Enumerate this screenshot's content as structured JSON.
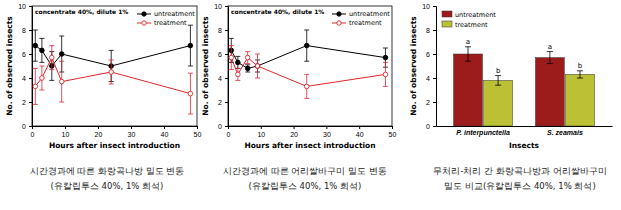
{
  "chart_data": [
    {
      "type": "line",
      "annotations": [
        "concentrate 40%, dilute 1%"
      ],
      "x_label": "Hours after insect introduction",
      "y_label": "No. of observed insects",
      "x": [
        1,
        3,
        6,
        9,
        24,
        48
      ],
      "xlim": [
        0,
        50
      ],
      "xticks": [
        0,
        10,
        20,
        30,
        40,
        50
      ],
      "ylim": [
        0,
        10
      ],
      "yticks": [
        0,
        2,
        4,
        6,
        8,
        10
      ],
      "legend": "top-right",
      "series": [
        {
          "name": "untreatment",
          "color": "#000000",
          "marker": "circle",
          "line_style": "solid",
          "values": [
            6.7,
            6.3,
            5.0,
            6.0,
            5.0,
            6.7
          ],
          "errors": [
            1.3,
            1.0,
            1.2,
            1.5,
            1.3,
            1.7
          ]
        },
        {
          "name": "treatment",
          "color": "#e0262c",
          "marker": "circle-open",
          "line_style": "solid",
          "values": [
            3.3,
            4.0,
            5.7,
            3.7,
            4.5,
            2.7
          ],
          "errors": [
            1.5,
            1.0,
            1.0,
            1.7,
            1.0,
            1.7
          ]
        }
      ],
      "caption": [
        "시간경과에 따른 화랑곡나방 밀도 변동",
        "(유칼립투스 40%, 1% 희석)"
      ]
    },
    {
      "type": "line",
      "annotations": [
        "concentrate 40%, dilute 1%"
      ],
      "x_label": "Hours after insect introduction",
      "y_label": "No. of observed insects",
      "x": [
        1,
        3,
        6,
        9,
        24,
        48
      ],
      "xlim": [
        0,
        50
      ],
      "xticks": [
        0,
        10,
        20,
        30,
        40,
        50
      ],
      "ylim": [
        0,
        10
      ],
      "yticks": [
        0,
        2,
        4,
        6,
        8,
        10
      ],
      "legend": "top-right",
      "series": [
        {
          "name": "untreatment",
          "color": "#000000",
          "marker": "circle",
          "line_style": "solid",
          "values": [
            6.3,
            5.3,
            4.8,
            5.0,
            6.7,
            5.7
          ],
          "errors": [
            1.0,
            0.5,
            0.3,
            0.5,
            1.3,
            0.8
          ]
        },
        {
          "name": "treatment",
          "color": "#e0262c",
          "marker": "circle-open",
          "line_style": "solid",
          "values": [
            5.7,
            4.3,
            5.7,
            5.0,
            3.3,
            4.3
          ],
          "errors": [
            1.0,
            0.5,
            0.5,
            1.0,
            1.0,
            1.0
          ]
        }
      ],
      "caption": [
        "시간경과에 따른 어리쌀바구미 밀도 변동",
        "(유칼립투스 40%, 1% 희석)"
      ]
    },
    {
      "type": "bar",
      "x_label": "Insects",
      "y_label": "No. of observed insects",
      "categories": [
        "P. interpunctella",
        "S. zeamais"
      ],
      "ylim": [
        0,
        10
      ],
      "yticks": [
        0,
        2,
        4,
        6,
        8,
        10
      ],
      "legend": "top-left",
      "series": [
        {
          "name": "untreatment",
          "color": "#9c1c1c",
          "values": [
            6.0,
            5.7
          ],
          "errors": [
            0.6,
            0.5
          ],
          "letters": [
            "a",
            "a"
          ]
        },
        {
          "name": "treatment",
          "color": "#bcc034",
          "values": [
            3.8,
            4.3
          ],
          "errors": [
            0.4,
            0.3
          ],
          "letters": [
            "b",
            "b"
          ]
        }
      ],
      "caption": [
        "무처리-처리 간 화랑곡나방과 어리쌀바구미",
        "밀도 비교(유칼립투스 40%, 1% 희석)"
      ]
    }
  ]
}
